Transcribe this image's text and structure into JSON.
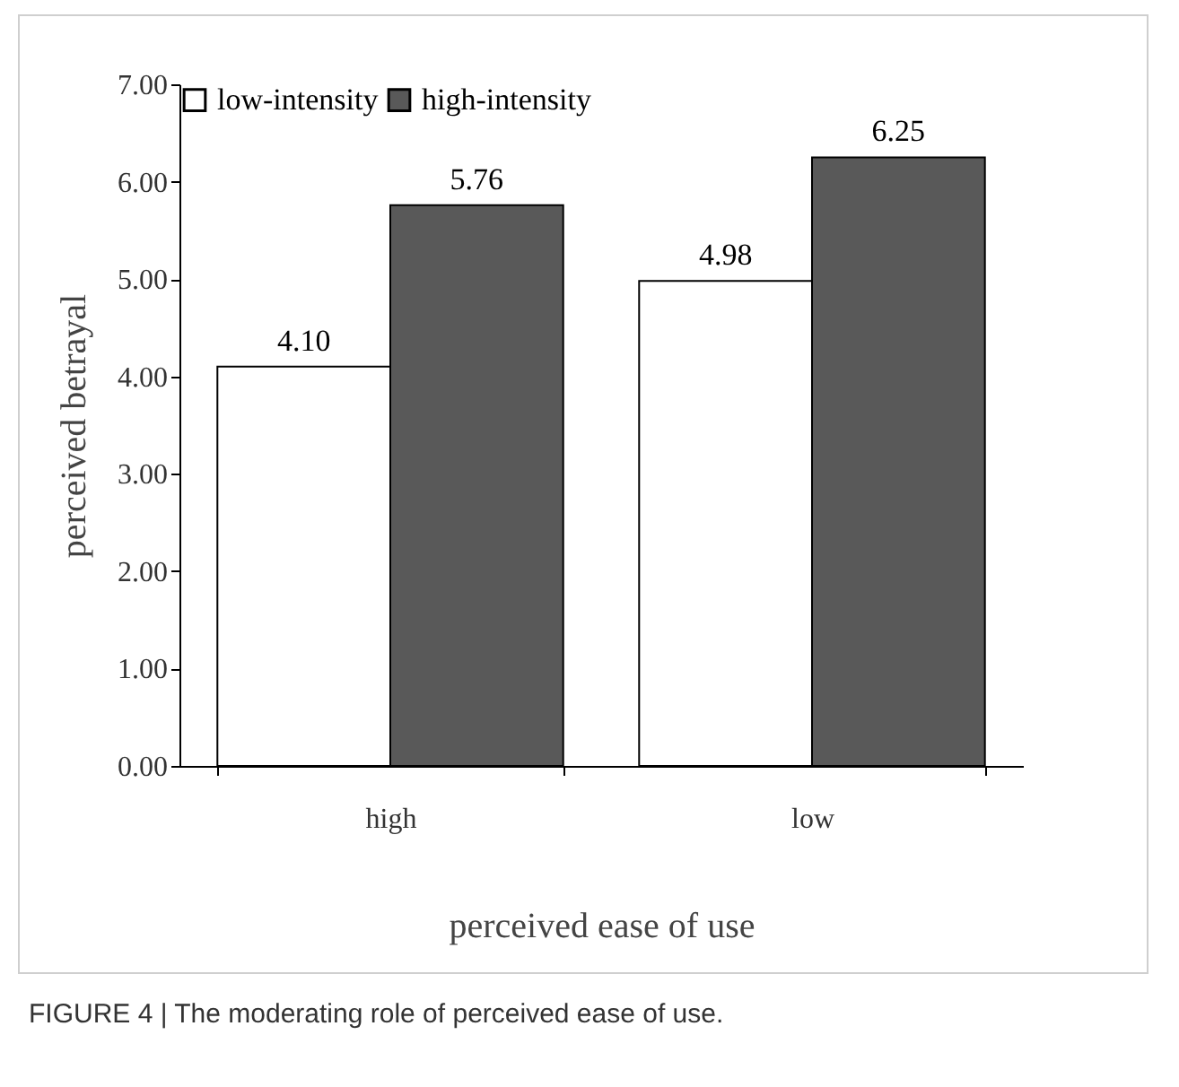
{
  "chart_data": {
    "type": "bar",
    "categories": [
      "high",
      "low"
    ],
    "series": [
      {
        "name": "low-intensity",
        "color": "#ffffff",
        "values": [
          4.1,
          4.98
        ],
        "value_labels": [
          "4.10",
          "4.98"
        ]
      },
      {
        "name": "high-intensity",
        "color": "#595959",
        "values": [
          5.76,
          6.25
        ],
        "value_labels": [
          "5.76",
          "6.25"
        ]
      }
    ],
    "xlabel": "perceived ease of use",
    "ylabel": "perceived betrayal",
    "ylim": [
      0,
      7
    ],
    "yticks": [
      {
        "value": 0,
        "label": "0.00"
      },
      {
        "value": 1,
        "label": "1.00"
      },
      {
        "value": 2,
        "label": "2.00"
      },
      {
        "value": 3,
        "label": "3.00"
      },
      {
        "value": 4,
        "label": "4.00"
      },
      {
        "value": 5,
        "label": "5.00"
      },
      {
        "value": 6,
        "label": "6.00"
      },
      {
        "value": 7,
        "label": "7.00"
      }
    ],
    "grid": false,
    "legend": "top left",
    "annotations": [
      "FIGURE 4 | The moderating role of perceived ease of use."
    ]
  }
}
